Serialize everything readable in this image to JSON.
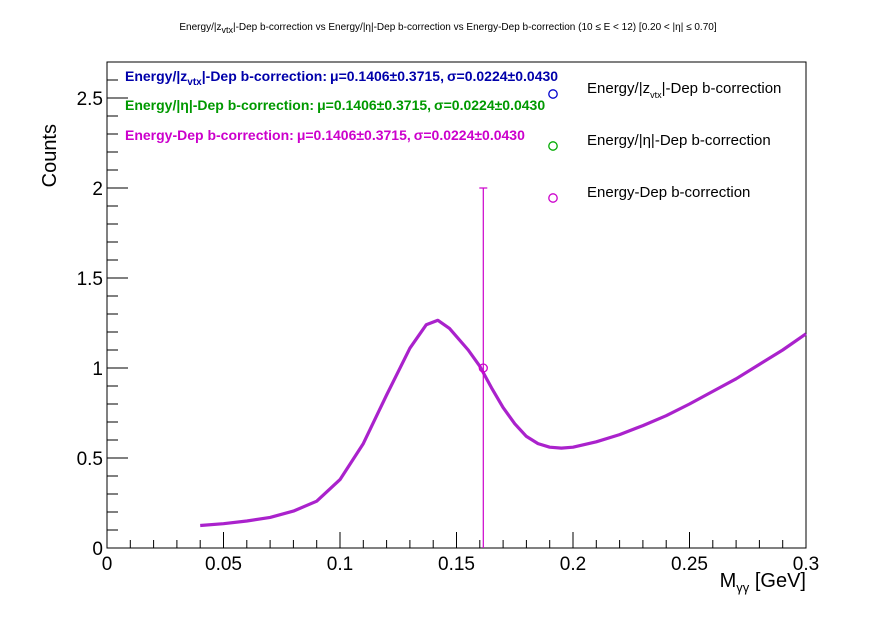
{
  "chart_data": {
    "type": "line",
    "title": "Energy/|z_vtx|-Dep b-correction vs Energy/|η|-Dep b-correction vs Energy-Dep b-correction   (10 ≤ E < 12)   [0.20 < |η| ≤ 0.70]",
    "title_parts": {
      "p1": "Energy/|z",
      "p1_sub": "vtx",
      "p2": "|-Dep b-correction vs Energy/|η|-Dep b-correction vs Energy-Dep b-correction   (10 ≤ E < 12)   [0.20 < |η| ≤ 0.70]"
    },
    "xlabel": "M",
    "xlabel_sub": "γγ",
    "xlabel_unit": " [GeV]",
    "ylabel": "Counts",
    "xlim": [
      0,
      0.3
    ],
    "ylim": [
      0,
      2.7
    ],
    "x_ticks": [
      0,
      0.05,
      0.1,
      0.15,
      0.2,
      0.25,
      0.3
    ],
    "x_tick_labels": [
      "0",
      "0.05",
      "0.1",
      "0.15",
      "0.2",
      "0.25",
      "0.3"
    ],
    "y_ticks": [
      0,
      0.5,
      1,
      1.5,
      2,
      2.5
    ],
    "y_tick_labels": [
      "0",
      "0.5",
      "1",
      "1.5",
      "2",
      "2.5"
    ],
    "grid": false,
    "legend_position": "top-right",
    "stats": [
      {
        "label_a": "Energy/|z",
        "label_sub": "vtx",
        "label_b": "|-Dep b-correction:",
        "mu": "μ=0.1406±0.3715,",
        "sigma": "σ=0.0224±0.0430",
        "color": "#0000aa"
      },
      {
        "label_a": "Energy/|η|-Dep b-correction:",
        "label_sub": "",
        "label_b": "",
        "mu": "μ=0.1406±0.3715,",
        "sigma": "σ=0.0224±0.0430",
        "color": "#009900"
      },
      {
        "label_a": "Energy-Dep b-correction:",
        "label_sub": "",
        "label_b": "",
        "mu": "μ=0.1406±0.3715,",
        "sigma": "σ=0.0224±0.0430",
        "color": "#cc00cc"
      }
    ],
    "series": [
      {
        "name": "Energy/|z_vtx|-Dep b-correction",
        "legend_a": "Energy/|z",
        "legend_sub": "vtx",
        "legend_b": "|-Dep b-correction",
        "color": "#0000cc",
        "points": []
      },
      {
        "name": "Energy/|η|-Dep b-correction",
        "legend_a": "Energy/|η|-Dep b-correction",
        "legend_sub": "",
        "legend_b": "",
        "color": "#00aa00",
        "points": []
      },
      {
        "name": "Energy-Dep b-correction",
        "legend_a": "Energy-Dep b-correction",
        "legend_sub": "",
        "legend_b": "",
        "color": "#cc00cc",
        "points": [
          {
            "x": 0.1615,
            "y": 1.0,
            "yerr_low": 1.0,
            "yerr_high": 1.0
          }
        ]
      }
    ],
    "fit_curve": {
      "color": "#aa22cc",
      "points": [
        [
          0.04,
          0.125
        ],
        [
          0.05,
          0.135
        ],
        [
          0.06,
          0.15
        ],
        [
          0.07,
          0.17
        ],
        [
          0.08,
          0.205
        ],
        [
          0.09,
          0.26
        ],
        [
          0.1,
          0.38
        ],
        [
          0.11,
          0.58
        ],
        [
          0.12,
          0.85
        ],
        [
          0.13,
          1.11
        ],
        [
          0.137,
          1.24
        ],
        [
          0.142,
          1.265
        ],
        [
          0.147,
          1.22
        ],
        [
          0.155,
          1.1
        ],
        [
          0.16,
          1.01
        ],
        [
          0.165,
          0.89
        ],
        [
          0.17,
          0.78
        ],
        [
          0.175,
          0.69
        ],
        [
          0.18,
          0.62
        ],
        [
          0.185,
          0.58
        ],
        [
          0.19,
          0.56
        ],
        [
          0.195,
          0.555
        ],
        [
          0.2,
          0.56
        ],
        [
          0.21,
          0.59
        ],
        [
          0.22,
          0.63
        ],
        [
          0.23,
          0.68
        ],
        [
          0.24,
          0.735
        ],
        [
          0.25,
          0.8
        ],
        [
          0.26,
          0.87
        ],
        [
          0.27,
          0.94
        ],
        [
          0.28,
          1.02
        ],
        [
          0.29,
          1.1
        ],
        [
          0.3,
          1.19
        ]
      ]
    }
  }
}
